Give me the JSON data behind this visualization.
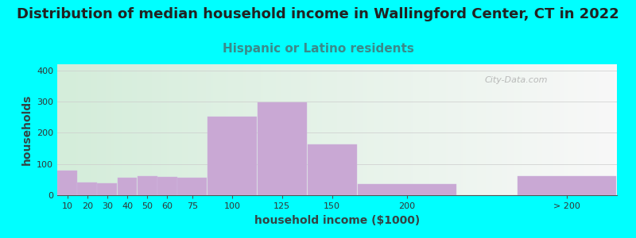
{
  "title": "Distribution of median household income in Wallingford Center, CT in 2022",
  "subtitle": "Hispanic or Latino residents",
  "xlabel": "household income ($1000)",
  "ylabel": "households",
  "background_outer": "#00FFFF",
  "bar_color": "#c9a8d4",
  "bar_edge_color": "#d0b8e0",
  "categories": [
    "10",
    "20",
    "30",
    "40",
    "50",
    "60",
    "75",
    "100",
    "125",
    "150",
    "200",
    "> 200"
  ],
  "values": [
    80,
    42,
    38,
    55,
    62,
    58,
    55,
    253,
    298,
    163,
    35,
    60
  ],
  "ylim": [
    0,
    420
  ],
  "yticks": [
    0,
    100,
    200,
    300,
    400
  ],
  "watermark": "City-Data.com",
  "title_fontsize": 13,
  "subtitle_fontsize": 11,
  "subtitle_color": "#3a8a8a",
  "axis_label_fontsize": 10,
  "tick_fontsize": 8,
  "lefts": [
    0,
    10,
    20,
    30,
    40,
    50,
    60,
    75,
    100,
    125,
    150,
    230
  ],
  "widths": [
    10,
    10,
    10,
    10,
    10,
    10,
    15,
    25,
    25,
    25,
    50,
    50
  ],
  "xlim": [
    0,
    280
  ]
}
